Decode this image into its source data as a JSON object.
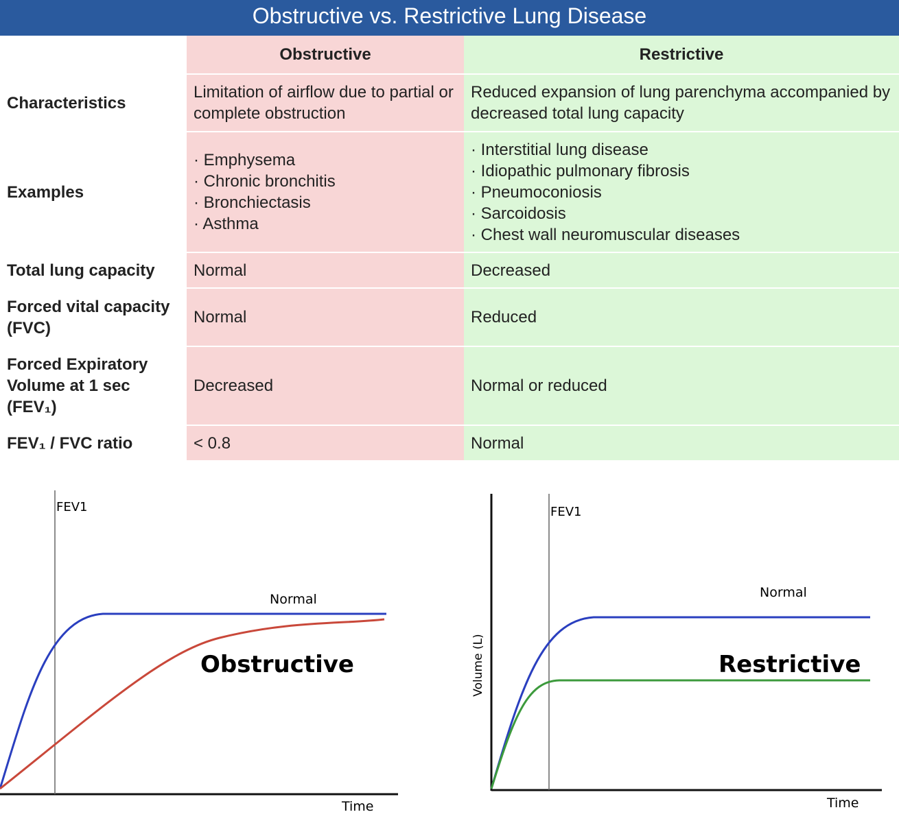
{
  "header": {
    "title": "Obstructive vs. Restrictive Lung Disease"
  },
  "table": {
    "column_headers": [
      "Obstructive",
      "Restrictive"
    ],
    "rows": [
      {
        "label": "Characteristics",
        "cells": [
          "Limitation of airflow due to partial or complete obstruction",
          "Reduced expansion of lung parenchyma accompanied by decreased total lung capacity"
        ]
      },
      {
        "label": "Examples",
        "cells": [
          [
            "Emphysema",
            "Chronic bronchitis",
            "Bronchiectasis",
            "Asthma"
          ],
          [
            "Interstitial lung disease",
            "Idiopathic pulmonary fibrosis",
            "Pneumoconiosis",
            "Sarcoidosis",
            "Chest wall neuromuscular diseases"
          ]
        ]
      },
      {
        "label": "Total lung capacity",
        "cells": [
          "Normal",
          "Decreased"
        ]
      },
      {
        "label": "Forced vital capacity (FVC)",
        "cells": [
          "Normal",
          "Reduced"
        ]
      },
      {
        "label": "Forced Expiratory Volume at 1 sec (FEV₁)",
        "cells": [
          "Decreased",
          "Normal or reduced"
        ]
      },
      {
        "label": "FEV₁ / FVC ratio",
        "cells": [
          "< 0.8",
          "Normal"
        ]
      }
    ]
  },
  "diagrams": [
    {
      "fev_label": "FEV1",
      "curve_label": "Normal",
      "title": "Obstructive",
      "x_axis": "Time"
    },
    {
      "fev_label": "FEV1",
      "curve_label": "Normal",
      "title": "Restrictive",
      "x_axis": "Time",
      "y_axis": "Volume (L)"
    }
  ]
}
